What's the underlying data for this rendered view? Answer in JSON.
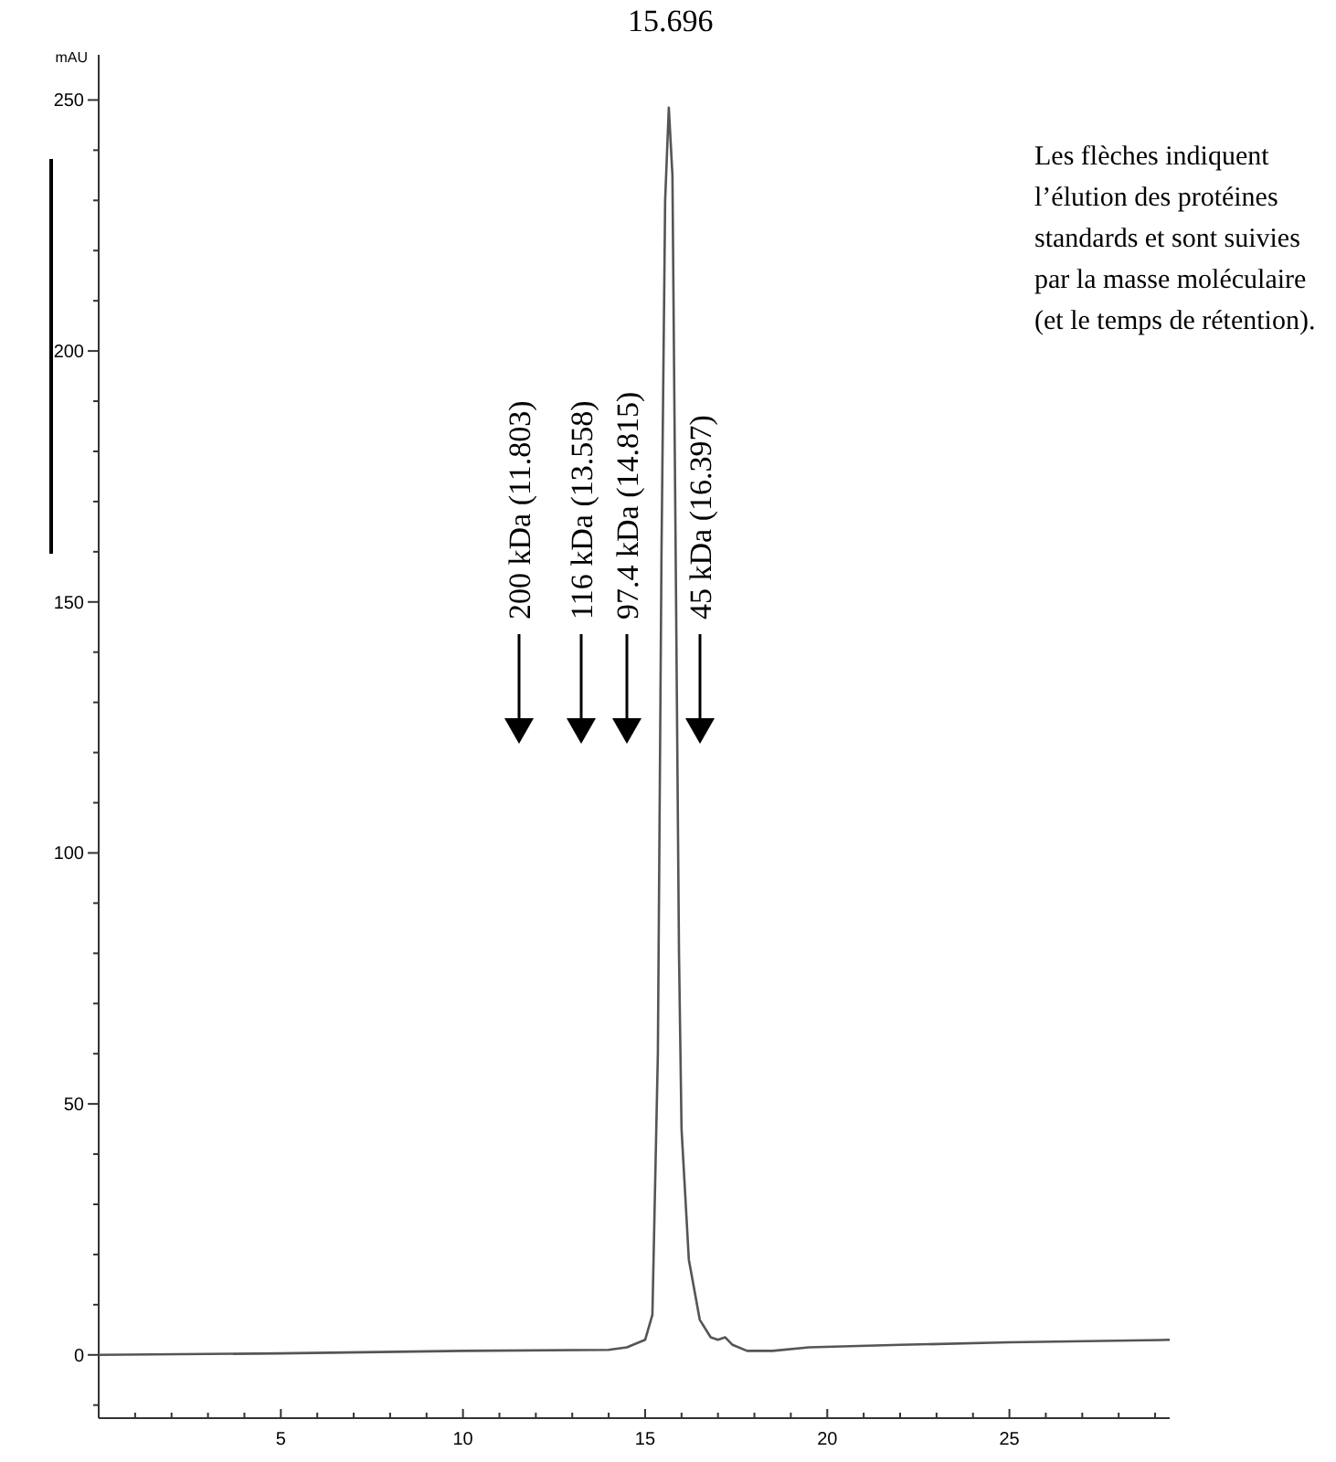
{
  "chart_data": {
    "type": "line",
    "ylabel": "mAU",
    "xlim": [
      0,
      29.4
    ],
    "ylim": [
      -12.6,
      259
    ],
    "xticks": [
      {
        "value": 1,
        "label": null
      },
      {
        "value": 2,
        "label": null
      },
      {
        "value": 3,
        "label": null
      },
      {
        "value": 4,
        "label": null
      },
      5,
      {
        "value": 6,
        "label": null
      },
      {
        "value": 7,
        "label": null
      },
      {
        "value": 8,
        "label": null
      },
      {
        "value": 9,
        "label": null
      },
      10,
      {
        "value": 11,
        "label": null
      },
      {
        "value": 12,
        "label": null
      },
      {
        "value": 13,
        "label": null
      },
      {
        "value": 14,
        "label": null
      },
      15,
      {
        "value": 16,
        "label": null
      },
      {
        "value": 17,
        "label": null
      },
      {
        "value": 18,
        "label": null
      },
      {
        "value": 19,
        "label": null
      },
      20,
      {
        "value": 21,
        "label": null
      },
      {
        "value": 22,
        "label": null
      },
      {
        "value": 23,
        "label": null
      },
      {
        "value": 24,
        "label": null
      },
      25,
      {
        "value": 26,
        "label": null
      },
      {
        "value": 27,
        "label": null
      },
      {
        "value": 28,
        "label": null
      },
      {
        "value": 29,
        "label": null
      }
    ],
    "yticks": [
      {
        "value": -10,
        "label": null
      },
      0,
      {
        "value": 10,
        "label": null
      },
      {
        "value": 20,
        "label": null
      },
      {
        "value": 30,
        "label": null
      },
      {
        "value": 40,
        "label": null
      },
      50,
      {
        "value": 60,
        "label": null
      },
      {
        "value": 70,
        "label": null
      },
      {
        "value": 80,
        "label": null
      },
      {
        "value": 90,
        "label": null
      },
      100,
      {
        "value": 110,
        "label": null
      },
      {
        "value": 120,
        "label": null
      },
      {
        "value": 130,
        "label": null
      },
      {
        "value": 140,
        "label": null
      },
      150,
      {
        "value": 160,
        "label": null
      },
      {
        "value": 170,
        "label": null
      },
      {
        "value": 180,
        "label": null
      },
      {
        "value": 190,
        "label": null
      },
      200,
      {
        "value": 210,
        "label": null
      },
      {
        "value": 220,
        "label": null
      },
      {
        "value": 230,
        "label": null
      },
      {
        "value": 240,
        "label": null
      },
      250
    ],
    "series": [
      {
        "color": "#555555",
        "x": [
          0,
          5,
          10,
          14,
          14.5,
          15,
          15.2,
          15.35,
          15.45,
          15.55,
          15.65,
          15.75,
          15.85,
          15.93,
          16,
          16.2,
          16.5,
          16.8,
          17,
          17.2,
          17.4,
          17.8,
          18.5,
          19.5,
          22,
          25,
          29.4
        ],
        "values": [
          0,
          0.3,
          0.8,
          1,
          1.5,
          3,
          8,
          60,
          160,
          230,
          248.5,
          235,
          150,
          80,
          45,
          19,
          7,
          3.5,
          3,
          3.5,
          2,
          0.8,
          0.8,
          1.5,
          2,
          2.5,
          3
        ]
      }
    ],
    "annotations": [
      {
        "text": "15.696",
        "x": 15.696,
        "y": 248.5
      },
      "200 kDa (11.803)",
      "116 kDa (13.558)",
      "97.4 kDa (14.815)",
      "45 kDa (16.397)",
      "Les flèches indiquent\nl’élution des protéines\nstandards et sont suivies\npar la masse moléculaire\n(et le temps de rétention)."
    ],
    "marker": "none",
    "line_style": "solid",
    "grid": false
  }
}
